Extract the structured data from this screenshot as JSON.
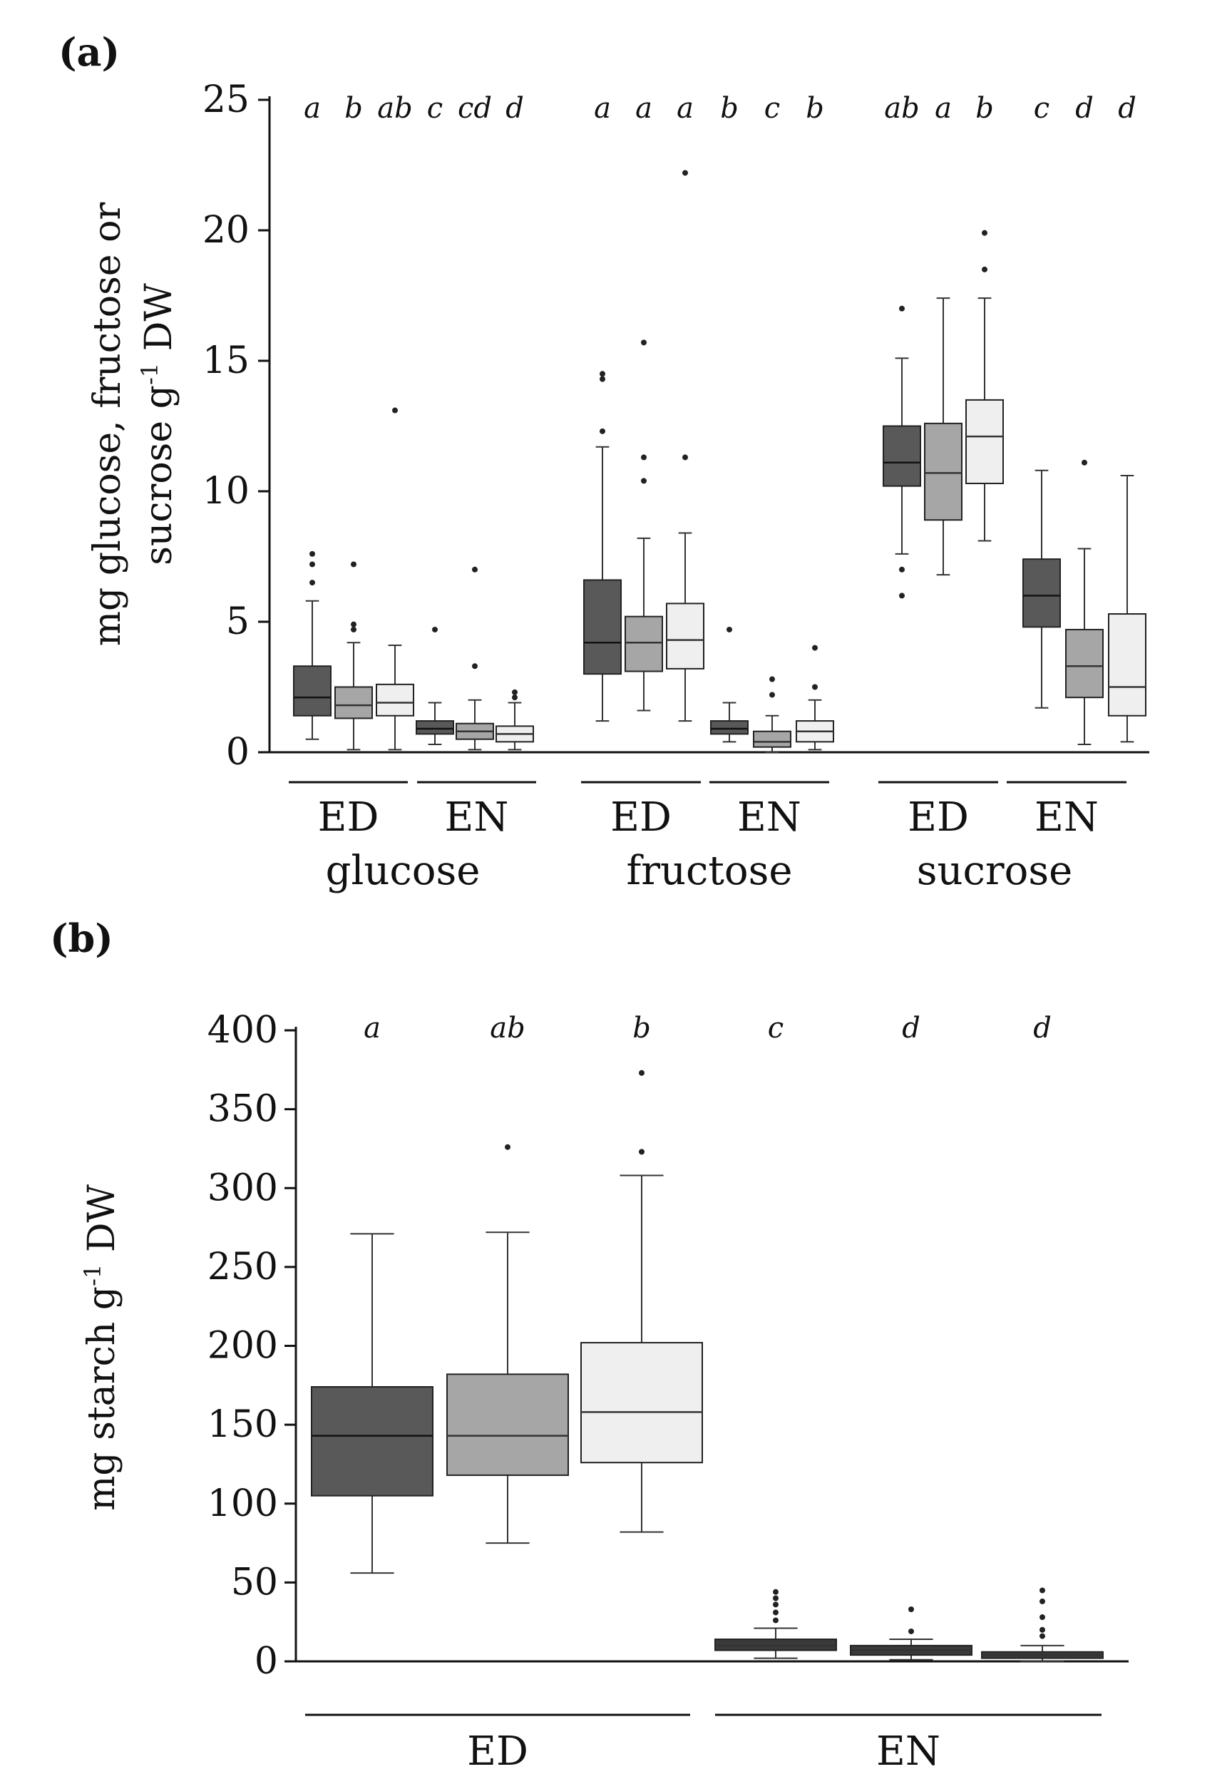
{
  "figure": {
    "panel_a_label": "(a)",
    "panel_b_label": "(b)"
  },
  "chart_data": [
    {
      "type": "boxplot",
      "title": "",
      "ylabel_lines": [
        "mg glucose, fructose or",
        "sucrose g-1 DW"
      ],
      "ylabel_sup": "-1",
      "ylim": [
        0,
        25
      ],
      "yticks": [
        0,
        5,
        10,
        15,
        20,
        25
      ],
      "grid": false,
      "group_labels": [
        {
          "label": "ED",
          "sub_label": "glucose"
        },
        {
          "label": "EN",
          "sub_label": ""
        },
        {
          "label": "ED",
          "sub_label": "fructose"
        },
        {
          "label": "EN",
          "sub_label": ""
        },
        {
          "label": "ED",
          "sub_label": "sucrose"
        },
        {
          "label": "EN",
          "sub_label": ""
        }
      ],
      "category_labels": [
        "glucose",
        "fructose",
        "sucrose"
      ],
      "shade_colors": [
        "#595959",
        "#a6a6a6",
        "#efefef"
      ],
      "boxes": [
        {
          "sugar": "glucose",
          "tissue": "ED",
          "min": 0.5,
          "q1": 1.4,
          "median": 2.1,
          "q3": 3.3,
          "max": 5.8,
          "outliers": [
            6.5,
            7.2,
            7.6
          ],
          "sig": "a"
        },
        {
          "sugar": "glucose",
          "tissue": "ED",
          "min": 0.1,
          "q1": 1.3,
          "median": 1.8,
          "q3": 2.5,
          "max": 4.2,
          "outliers": [
            4.7,
            4.9,
            7.2
          ],
          "sig": "b"
        },
        {
          "sugar": "glucose",
          "tissue": "ED",
          "min": 0.1,
          "q1": 1.4,
          "median": 1.9,
          "q3": 2.6,
          "max": 4.1,
          "outliers": [
            13.1
          ],
          "sig": "ab"
        },
        {
          "sugar": "glucose",
          "tissue": "EN",
          "min": 0.3,
          "q1": 0.7,
          "median": 0.9,
          "q3": 1.2,
          "max": 1.9,
          "outliers": [
            4.7
          ],
          "sig": "c"
        },
        {
          "sugar": "glucose",
          "tissue": "EN",
          "min": 0.1,
          "q1": 0.5,
          "median": 0.8,
          "q3": 1.1,
          "max": 2.0,
          "outliers": [
            3.3,
            7.0
          ],
          "sig": "cd"
        },
        {
          "sugar": "glucose",
          "tissue": "EN",
          "min": 0.1,
          "q1": 0.4,
          "median": 0.7,
          "q3": 1.0,
          "max": 1.9,
          "outliers": [
            2.1,
            2.3
          ],
          "sig": "d"
        },
        {
          "sugar": "fructose",
          "tissue": "ED",
          "min": 1.2,
          "q1": 3.0,
          "median": 4.2,
          "q3": 6.6,
          "max": 11.7,
          "outliers": [
            12.3,
            14.3,
            14.5
          ],
          "sig": "a"
        },
        {
          "sugar": "fructose",
          "tissue": "ED",
          "min": 1.6,
          "q1": 3.1,
          "median": 4.2,
          "q3": 5.2,
          "max": 8.2,
          "outliers": [
            10.4,
            11.3,
            15.7
          ],
          "sig": "a"
        },
        {
          "sugar": "fructose",
          "tissue": "ED",
          "min": 1.2,
          "q1": 3.2,
          "median": 4.3,
          "q3": 5.7,
          "max": 8.4,
          "outliers": [
            11.3,
            22.2
          ],
          "sig": "a"
        },
        {
          "sugar": "fructose",
          "tissue": "EN",
          "min": 0.4,
          "q1": 0.7,
          "median": 0.9,
          "q3": 1.2,
          "max": 1.9,
          "outliers": [
            4.7
          ],
          "sig": "b"
        },
        {
          "sugar": "fructose",
          "tissue": "EN",
          "min": 0.0,
          "q1": 0.2,
          "median": 0.4,
          "q3": 0.8,
          "max": 1.4,
          "outliers": [
            2.2,
            2.8
          ],
          "sig": "c"
        },
        {
          "sugar": "fructose",
          "tissue": "EN",
          "min": 0.1,
          "q1": 0.4,
          "median": 0.8,
          "q3": 1.2,
          "max": 2.0,
          "outliers": [
            2.5,
            4.0
          ],
          "sig": "b"
        },
        {
          "sugar": "sucrose",
          "tissue": "ED",
          "min": 7.6,
          "q1": 10.2,
          "median": 11.1,
          "q3": 12.5,
          "max": 15.1,
          "outliers": [
            6.0,
            7.0,
            17.0
          ],
          "sig": "ab"
        },
        {
          "sugar": "sucrose",
          "tissue": "ED",
          "min": 6.8,
          "q1": 8.9,
          "median": 10.7,
          "q3": 12.6,
          "max": 17.4,
          "outliers": [],
          "sig": "a"
        },
        {
          "sugar": "sucrose",
          "tissue": "ED",
          "min": 8.1,
          "q1": 10.3,
          "median": 12.1,
          "q3": 13.5,
          "max": 17.4,
          "outliers": [
            18.5,
            19.9
          ],
          "sig": "b"
        },
        {
          "sugar": "sucrose",
          "tissue": "EN",
          "min": 1.7,
          "q1": 4.8,
          "median": 6.0,
          "q3": 7.4,
          "max": 10.8,
          "outliers": [],
          "sig": "c"
        },
        {
          "sugar": "sucrose",
          "tissue": "EN",
          "min": 0.3,
          "q1": 2.1,
          "median": 3.3,
          "q3": 4.7,
          "max": 7.8,
          "outliers": [
            11.1
          ],
          "sig": "d"
        },
        {
          "sugar": "sucrose",
          "tissue": "EN",
          "min": 0.4,
          "q1": 1.4,
          "median": 2.5,
          "q3": 5.3,
          "max": 10.6,
          "outliers": [],
          "sig": "d"
        }
      ]
    },
    {
      "type": "boxplot",
      "title": "",
      "ylabel": "mg starch g-1 DW",
      "ylabel_main": "mg starch g",
      "ylabel_sup": "-1",
      "ylabel_tail": " DW",
      "ylim": [
        0,
        400
      ],
      "yticks": [
        0,
        50,
        100,
        150,
        200,
        250,
        300,
        350,
        400
      ],
      "grid": false,
      "group_labels": [
        "ED",
        "EN"
      ],
      "shade_colors": [
        "#595959",
        "#a6a6a6",
        "#efefef"
      ],
      "boxes": [
        {
          "tissue": "ED",
          "min": 56,
          "q1": 105,
          "median": 143,
          "q3": 174,
          "max": 271,
          "outliers": [],
          "sig": "a"
        },
        {
          "tissue": "ED",
          "min": 75,
          "q1": 118,
          "median": 143,
          "q3": 182,
          "max": 272,
          "outliers": [
            326
          ],
          "sig": "ab"
        },
        {
          "tissue": "ED",
          "min": 82,
          "q1": 126,
          "median": 158,
          "q3": 202,
          "max": 308,
          "outliers": [
            323,
            373
          ],
          "sig": "b"
        },
        {
          "tissue": "EN",
          "min": 2,
          "q1": 7,
          "median": 10,
          "q3": 14,
          "max": 21,
          "outliers": [
            26,
            31,
            36,
            40,
            44
          ],
          "sig": "c"
        },
        {
          "tissue": "EN",
          "min": 1,
          "q1": 4,
          "median": 7,
          "q3": 10,
          "max": 14,
          "outliers": [
            19,
            33
          ],
          "sig": "d"
        },
        {
          "tissue": "EN",
          "min": 0,
          "q1": 2,
          "median": 4,
          "q3": 6,
          "max": 10,
          "outliers": [
            16,
            20,
            28,
            38,
            45
          ],
          "sig": "d"
        }
      ]
    }
  ]
}
